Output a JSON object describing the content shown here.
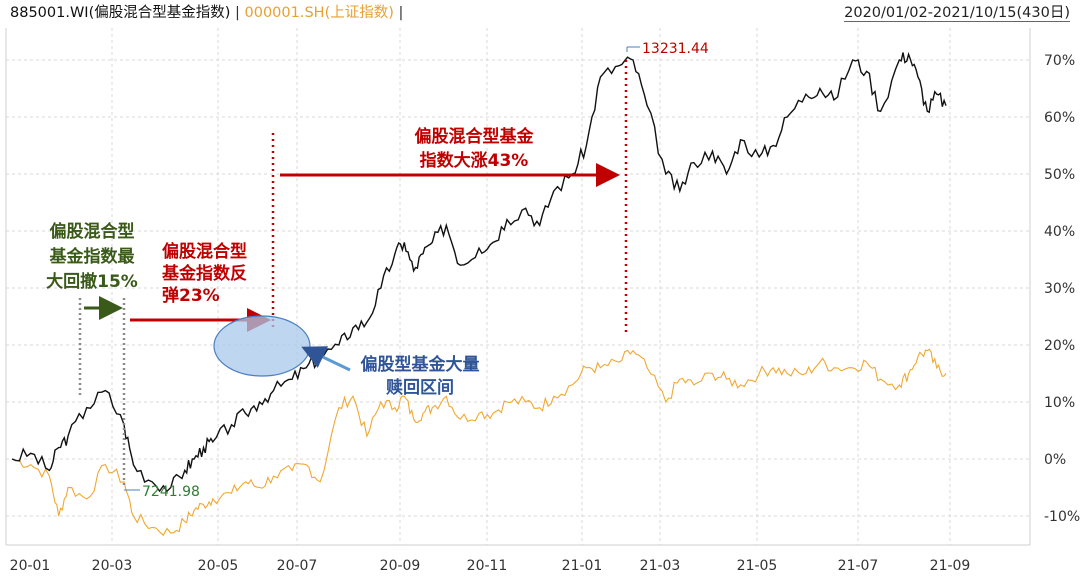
{
  "header": {
    "series1": "885001.WI(偏股混合型基金指数)",
    "separator1": " | ",
    "series2": "000001.SH(上证指数)",
    "separator2": " | ",
    "range": "2020/01/02-2021/10/15(430日)"
  },
  "colors": {
    "series1": "#111111",
    "series2": "#f0a830",
    "annotation_red": "#c00000",
    "annotation_green": "#3a5a1a",
    "annotation_blue": "#2f5597",
    "ellipse_fill": "#a8c8ea",
    "grid": "#d8d8d8"
  },
  "chart_data": {
    "type": "line",
    "x_tick_labels": [
      "20-01",
      "20-03",
      "20-05",
      "20-07",
      "20-09",
      "20-11",
      "21-01",
      "21-03",
      "21-05",
      "21-07",
      "21-09"
    ],
    "y_tick_labels": [
      "70%",
      "60%",
      "50%",
      "40%",
      "30%",
      "20%",
      "10%",
      "0%",
      "-10%"
    ],
    "y_ticks": [
      70,
      60,
      50,
      40,
      30,
      20,
      10,
      0,
      -10
    ],
    "ylim": [
      -15,
      72
    ],
    "xlim": [
      0,
      21.5
    ],
    "grid": true,
    "series": [
      {
        "name": "885001.WI(偏股混合型基金指数)",
        "x": [
          0,
          0.4,
          0.8,
          1.0,
          1.2,
          1.6,
          2.0,
          2.4,
          2.6,
          3.0,
          3.4,
          3.7,
          3.9,
          4.1,
          4.3,
          4.7,
          5.0,
          5.3,
          5.6,
          6.0,
          6.3,
          6.6,
          7.0,
          7.3,
          7.6,
          7.9,
          8.2,
          8.4,
          8.6,
          8.8,
          9.0,
          9.3,
          9.6,
          10.0,
          10.3,
          10.6,
          11.0,
          11.3,
          11.6,
          12.0,
          12.3,
          12.6,
          13.0,
          13.3,
          13.6,
          14.0,
          14.3,
          14.6,
          15.0,
          15.3,
          15.6,
          16.0,
          16.3,
          16.6,
          17.0,
          17.3,
          17.6,
          18.0,
          18.3,
          18.6,
          19.0,
          19.2,
          19.4,
          19.6,
          19.8,
          20.0
        ],
        "values": [
          0,
          1,
          -2,
          2,
          4,
          9,
          12,
          6,
          -1,
          -4,
          -5,
          -2,
          0,
          2,
          3,
          6,
          8,
          10,
          12,
          14,
          16,
          18,
          20,
          23,
          24,
          30,
          36,
          38,
          33,
          36,
          38,
          41,
          34,
          37,
          38,
          42,
          44,
          41,
          47,
          50,
          55,
          67,
          69,
          70,
          62,
          50,
          47,
          52,
          54,
          50,
          56,
          53,
          55,
          60,
          64,
          65,
          63,
          70,
          68,
          61,
          70,
          71,
          67,
          61,
          64,
          62
        ],
        "color": "#111111"
      },
      {
        "name": "000001.SH(上证指数)",
        "x": [
          0,
          0.4,
          0.8,
          1.0,
          1.2,
          1.6,
          2.0,
          2.4,
          2.6,
          3.0,
          3.4,
          3.7,
          3.9,
          4.1,
          4.3,
          4.7,
          5.0,
          5.3,
          5.6,
          6.0,
          6.3,
          6.6,
          7.0,
          7.3,
          7.6,
          7.9,
          8.2,
          8.4,
          8.6,
          8.8,
          9.0,
          9.3,
          9.6,
          10.0,
          10.3,
          10.6,
          11.0,
          11.3,
          11.6,
          12.0,
          12.3,
          12.6,
          13.0,
          13.3,
          13.6,
          14.0,
          14.3,
          14.6,
          15.0,
          15.3,
          15.6,
          16.0,
          16.3,
          16.6,
          17.0,
          17.3,
          17.6,
          18.0,
          18.3,
          18.6,
          19.0,
          19.2,
          19.4,
          19.6,
          19.8,
          20.0
        ],
        "values": [
          0,
          -1,
          -3,
          -10,
          -5,
          -7,
          -1,
          -4,
          -10,
          -12,
          -13,
          -11,
          -9,
          -8,
          -7,
          -6,
          -4,
          -5,
          -3,
          -2,
          -1,
          -4,
          9,
          11,
          4,
          10,
          9,
          11,
          7,
          8,
          9,
          11,
          7,
          8,
          8,
          10,
          10,
          9,
          11,
          13,
          16,
          16,
          17,
          19,
          16,
          10,
          14,
          13,
          15,
          14,
          13,
          15,
          16,
          15,
          15,
          17,
          16,
          16,
          17,
          14,
          13,
          15,
          18,
          19,
          16,
          15
        ],
        "color": "#f0a830"
      }
    ],
    "annotations": [
      {
        "text": "13231.44",
        "x": 13.0,
        "y": 72
      },
      {
        "text": "7241.98",
        "x": 3.0,
        "y": -6
      }
    ],
    "callouts": {
      "drawdown": [
        "偏股混合型",
        "基金指数最",
        "大回撤15%"
      ],
      "rebound": [
        "偏股混合型",
        "基金指数反",
        "弹23%"
      ],
      "surge": [
        "偏股混合型基金",
        "指数大涨43%"
      ],
      "redemption": [
        "偏股型基金大量",
        "赎回区间"
      ]
    }
  }
}
